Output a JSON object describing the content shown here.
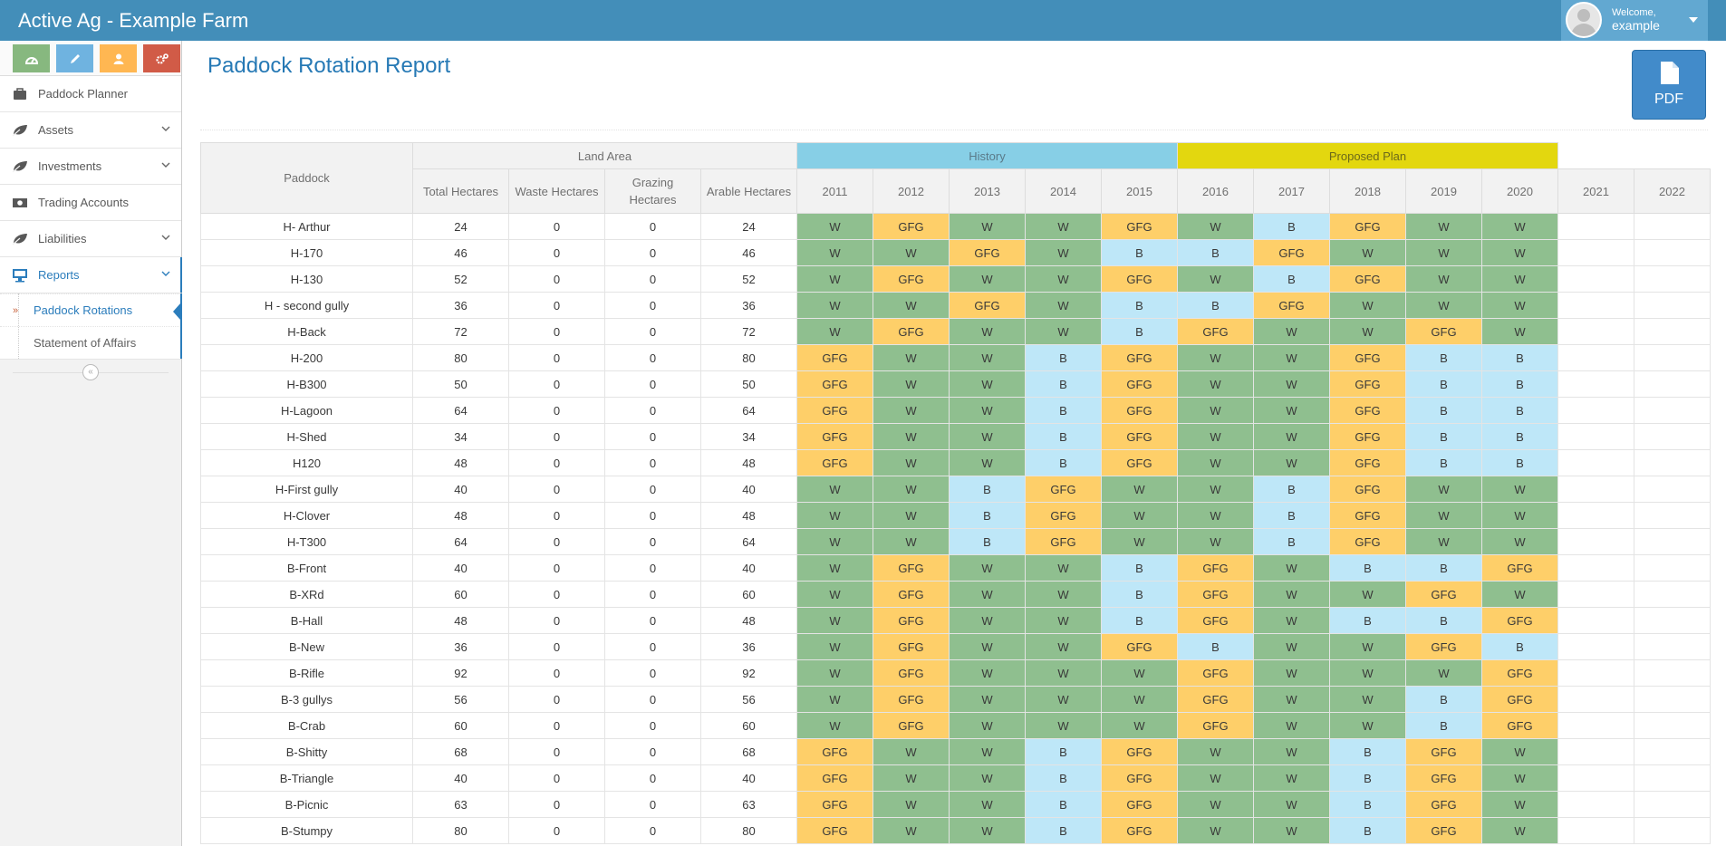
{
  "navbar": {
    "brand": "Active Ag - Example Farm",
    "welcome": "Welcome,",
    "username": "example"
  },
  "shortcuts": [
    {
      "icon": "dashboard-icon",
      "color": "#87b87f"
    },
    {
      "icon": "pencil-icon",
      "color": "#6fb3e0"
    },
    {
      "icon": "user-icon",
      "color": "#ffb752"
    },
    {
      "icon": "cogs-icon",
      "color": "#d15b47"
    }
  ],
  "sidebar": {
    "items": [
      {
        "label": "Paddock Planner",
        "icon": "briefcase-icon"
      },
      {
        "label": "Assets",
        "icon": "leaf-icon"
      },
      {
        "label": "Investments",
        "icon": "leaf-icon"
      },
      {
        "label": "Trading Accounts",
        "icon": "money-icon"
      },
      {
        "label": "Liabilities",
        "icon": "leaf-icon"
      },
      {
        "label": "Reports",
        "icon": "desktop-icon"
      }
    ],
    "reports_sub": [
      {
        "label": "Paddock Rotations"
      },
      {
        "label": "Statement of Affairs"
      }
    ]
  },
  "page": {
    "title": "Paddock Rotation Report",
    "pdf_label": "PDF"
  },
  "table": {
    "group_headers": {
      "paddock": "Paddock",
      "land_area": "Land Area",
      "history": "History",
      "proposed": "Proposed Plan"
    },
    "land_cols": [
      "Total Hectares",
      "Waste Hectares",
      "Grazing Hectares",
      "Arable Hectares"
    ],
    "years": [
      "2011",
      "2012",
      "2013",
      "2014",
      "2015",
      "2016",
      "2017",
      "2018",
      "2019",
      "2020",
      "2021",
      "2022"
    ],
    "rows": [
      {
        "name": "H- Arthur",
        "total": "24",
        "waste": "0",
        "grazing": "0",
        "arable": "24",
        "crops": [
          "W",
          "GFG",
          "W",
          "W",
          "GFG",
          "W",
          "B",
          "GFG",
          "W",
          "W",
          "",
          ""
        ]
      },
      {
        "name": "H-170",
        "total": "46",
        "waste": "0",
        "grazing": "0",
        "arable": "46",
        "crops": [
          "W",
          "W",
          "GFG",
          "W",
          "B",
          "B",
          "GFG",
          "W",
          "W",
          "W",
          "",
          ""
        ]
      },
      {
        "name": "H-130",
        "total": "52",
        "waste": "0",
        "grazing": "0",
        "arable": "52",
        "crops": [
          "W",
          "GFG",
          "W",
          "W",
          "GFG",
          "W",
          "B",
          "GFG",
          "W",
          "W",
          "",
          ""
        ]
      },
      {
        "name": "H - second gully",
        "total": "36",
        "waste": "0",
        "grazing": "0",
        "arable": "36",
        "crops": [
          "W",
          "W",
          "GFG",
          "W",
          "B",
          "B",
          "GFG",
          "W",
          "W",
          "W",
          "",
          ""
        ]
      },
      {
        "name": "H-Back",
        "total": "72",
        "waste": "0",
        "grazing": "0",
        "arable": "72",
        "crops": [
          "W",
          "GFG",
          "W",
          "W",
          "B",
          "GFG",
          "W",
          "W",
          "GFG",
          "W",
          "",
          ""
        ]
      },
      {
        "name": "H-200",
        "total": "80",
        "waste": "0",
        "grazing": "0",
        "arable": "80",
        "crops": [
          "GFG",
          "W",
          "W",
          "B",
          "GFG",
          "W",
          "W",
          "GFG",
          "B",
          "B",
          "",
          ""
        ]
      },
      {
        "name": "H-B300",
        "total": "50",
        "waste": "0",
        "grazing": "0",
        "arable": "50",
        "crops": [
          "GFG",
          "W",
          "W",
          "B",
          "GFG",
          "W",
          "W",
          "GFG",
          "B",
          "B",
          "",
          ""
        ]
      },
      {
        "name": "H-Lagoon",
        "total": "64",
        "waste": "0",
        "grazing": "0",
        "arable": "64",
        "crops": [
          "GFG",
          "W",
          "W",
          "B",
          "GFG",
          "W",
          "W",
          "GFG",
          "B",
          "B",
          "",
          ""
        ]
      },
      {
        "name": "H-Shed",
        "total": "34",
        "waste": "0",
        "grazing": "0",
        "arable": "34",
        "crops": [
          "GFG",
          "W",
          "W",
          "B",
          "GFG",
          "W",
          "W",
          "GFG",
          "B",
          "B",
          "",
          ""
        ]
      },
      {
        "name": "H120",
        "total": "48",
        "waste": "0",
        "grazing": "0",
        "arable": "48",
        "crops": [
          "GFG",
          "W",
          "W",
          "B",
          "GFG",
          "W",
          "W",
          "GFG",
          "B",
          "B",
          "",
          ""
        ]
      },
      {
        "name": "H-First gully",
        "total": "40",
        "waste": "0",
        "grazing": "0",
        "arable": "40",
        "crops": [
          "W",
          "W",
          "B",
          "GFG",
          "W",
          "W",
          "B",
          "GFG",
          "W",
          "W",
          "",
          ""
        ]
      },
      {
        "name": "H-Clover",
        "total": "48",
        "waste": "0",
        "grazing": "0",
        "arable": "48",
        "crops": [
          "W",
          "W",
          "B",
          "GFG",
          "W",
          "W",
          "B",
          "GFG",
          "W",
          "W",
          "",
          ""
        ]
      },
      {
        "name": "H-T300",
        "total": "64",
        "waste": "0",
        "grazing": "0",
        "arable": "64",
        "crops": [
          "W",
          "W",
          "B",
          "GFG",
          "W",
          "W",
          "B",
          "GFG",
          "W",
          "W",
          "",
          ""
        ]
      },
      {
        "name": "B-Front",
        "total": "40",
        "waste": "0",
        "grazing": "0",
        "arable": "40",
        "crops": [
          "W",
          "GFG",
          "W",
          "W",
          "B",
          "GFG",
          "W",
          "B",
          "B",
          "GFG",
          "",
          ""
        ]
      },
      {
        "name": "B-XRd",
        "total": "60",
        "waste": "0",
        "grazing": "0",
        "arable": "60",
        "crops": [
          "W",
          "GFG",
          "W",
          "W",
          "B",
          "GFG",
          "W",
          "W",
          "GFG",
          "W",
          "",
          ""
        ]
      },
      {
        "name": "B-Hall",
        "total": "48",
        "waste": "0",
        "grazing": "0",
        "arable": "48",
        "crops": [
          "W",
          "GFG",
          "W",
          "W",
          "B",
          "GFG",
          "W",
          "B",
          "B",
          "GFG",
          "",
          ""
        ]
      },
      {
        "name": "B-New",
        "total": "36",
        "waste": "0",
        "grazing": "0",
        "arable": "36",
        "crops": [
          "W",
          "GFG",
          "W",
          "W",
          "GFG",
          "B",
          "W",
          "W",
          "GFG",
          "B",
          "",
          ""
        ]
      },
      {
        "name": "B-Rifle",
        "total": "92",
        "waste": "0",
        "grazing": "0",
        "arable": "92",
        "crops": [
          "W",
          "GFG",
          "W",
          "W",
          "W",
          "GFG",
          "W",
          "W",
          "W",
          "GFG",
          "",
          ""
        ]
      },
      {
        "name": "B-3 gullys",
        "total": "56",
        "waste": "0",
        "grazing": "0",
        "arable": "56",
        "crops": [
          "W",
          "GFG",
          "W",
          "W",
          "W",
          "GFG",
          "W",
          "W",
          "B",
          "GFG",
          "",
          ""
        ]
      },
      {
        "name": "B-Crab",
        "total": "60",
        "waste": "0",
        "grazing": "0",
        "arable": "60",
        "crops": [
          "W",
          "GFG",
          "W",
          "W",
          "W",
          "GFG",
          "W",
          "W",
          "B",
          "GFG",
          "",
          ""
        ]
      },
      {
        "name": "B-Shitty",
        "total": "68",
        "waste": "0",
        "grazing": "0",
        "arable": "68",
        "crops": [
          "GFG",
          "W",
          "W",
          "B",
          "GFG",
          "W",
          "W",
          "B",
          "GFG",
          "W",
          "",
          ""
        ]
      },
      {
        "name": "B-Triangle",
        "total": "40",
        "waste": "0",
        "grazing": "0",
        "arable": "40",
        "crops": [
          "GFG",
          "W",
          "W",
          "B",
          "GFG",
          "W",
          "W",
          "B",
          "GFG",
          "W",
          "",
          ""
        ]
      },
      {
        "name": "B-Picnic",
        "total": "63",
        "waste": "0",
        "grazing": "0",
        "arable": "63",
        "crops": [
          "GFG",
          "W",
          "W",
          "B",
          "GFG",
          "W",
          "W",
          "B",
          "GFG",
          "W",
          "",
          ""
        ]
      },
      {
        "name": "B-Stumpy",
        "total": "80",
        "waste": "0",
        "grazing": "0",
        "arable": "80",
        "crops": [
          "GFG",
          "W",
          "W",
          "B",
          "GFG",
          "W",
          "W",
          "B",
          "GFG",
          "W",
          "",
          ""
        ]
      }
    ]
  },
  "colors": {
    "navbar": "#438eb9",
    "title": "#2679b5",
    "history": "#87cfe6",
    "proposed": "#e3d70f",
    "W": "#8fbf8f",
    "GFG": "#fecf69",
    "B": "#bee7f8"
  }
}
